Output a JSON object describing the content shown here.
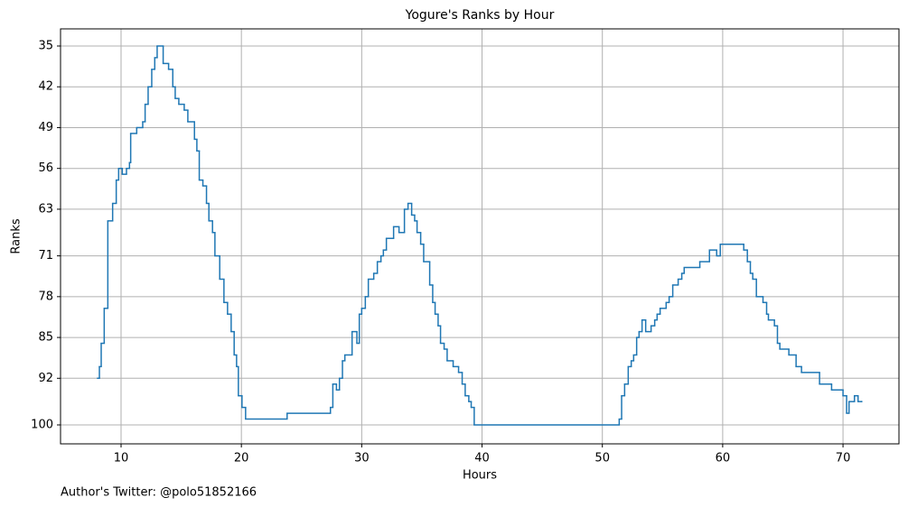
{
  "chart_data": {
    "type": "line",
    "drawstyle": "steps-post",
    "title": "Yogure's Ranks by Hour",
    "xlabel": "Hours",
    "ylabel": "Ranks",
    "annotation": "Author's Twitter: @polo51852166",
    "x": [
      8.05,
      8.2,
      8.35,
      8.6,
      8.9,
      9.3,
      9.6,
      9.8,
      10.1,
      10.45,
      10.7,
      10.8,
      11.3,
      11.8,
      12.0,
      12.25,
      12.55,
      12.8,
      13.0,
      13.5,
      13.95,
      14.3,
      14.5,
      14.8,
      15.25,
      15.55,
      16.1,
      16.3,
      16.5,
      16.8,
      17.1,
      17.3,
      17.6,
      17.8,
      18.2,
      18.55,
      18.85,
      19.15,
      19.4,
      19.6,
      19.75,
      20.05,
      20.35,
      23.8,
      27.4,
      27.6,
      27.9,
      28.15,
      28.4,
      28.6,
      29.2,
      29.6,
      29.8,
      30.0,
      30.3,
      30.55,
      31.0,
      31.3,
      31.6,
      31.8,
      32.05,
      32.65,
      33.1,
      33.55,
      33.85,
      34.15,
      34.4,
      34.6,
      34.9,
      35.15,
      35.65,
      35.9,
      36.1,
      36.35,
      36.55,
      36.85,
      37.1,
      37.6,
      38.05,
      38.35,
      38.6,
      38.9,
      39.1,
      39.35,
      51.4,
      51.6,
      51.85,
      52.15,
      52.4,
      52.6,
      52.85,
      53.05,
      53.3,
      53.6,
      54.05,
      54.35,
      54.55,
      54.8,
      55.3,
      55.55,
      55.85,
      56.3,
      56.6,
      56.8,
      58.1,
      58.9,
      59.5,
      59.8,
      61.75,
      62.05,
      62.3,
      62.5,
      62.8,
      63.35,
      63.65,
      63.8,
      64.3,
      64.55,
      64.75,
      65.5,
      66.1,
      66.55,
      68.05,
      69.05,
      70.0,
      70.3,
      70.5,
      70.95,
      71.25,
      71.55
    ],
    "series": [
      {
        "name": "Ranks",
        "color": "#1f77b4",
        "values": [
          92,
          90,
          86,
          80,
          65,
          62,
          58,
          56,
          57,
          56,
          55,
          50,
          49,
          48,
          45,
          42,
          39,
          37,
          35,
          38,
          39,
          42,
          44,
          45,
          46,
          48,
          51,
          53,
          58,
          59,
          62,
          65,
          67,
          71,
          75,
          79,
          81,
          84,
          88,
          90,
          95,
          97,
          99,
          98,
          97,
          93,
          94,
          92,
          89,
          88,
          84,
          86,
          81,
          80,
          78,
          75,
          74,
          72,
          71,
          70,
          68,
          66,
          67,
          63,
          62,
          64,
          65,
          67,
          69,
          72,
          76,
          79,
          81,
          83,
          86,
          87,
          89,
          90,
          91,
          93,
          95,
          96,
          97,
          100,
          99,
          95,
          93,
          90,
          89,
          88,
          85,
          84,
          82,
          84,
          83,
          82,
          81,
          80,
          79,
          78,
          76,
          75,
          74,
          73,
          72,
          70,
          71,
          69,
          70,
          72,
          74,
          75,
          78,
          79,
          81,
          82,
          83,
          86,
          87,
          88,
          90,
          91,
          93,
          94,
          95,
          98,
          96,
          95,
          96,
          96
        ]
      }
    ],
    "xlim": [
      4.97,
      74.65
    ],
    "ylim": [
      103.25,
      32.06
    ],
    "xticks": [
      10,
      20,
      30,
      40,
      50,
      60,
      70
    ],
    "yticks": [
      35,
      42,
      49,
      56,
      63,
      71,
      78,
      85,
      92,
      100
    ],
    "grid": true
  }
}
